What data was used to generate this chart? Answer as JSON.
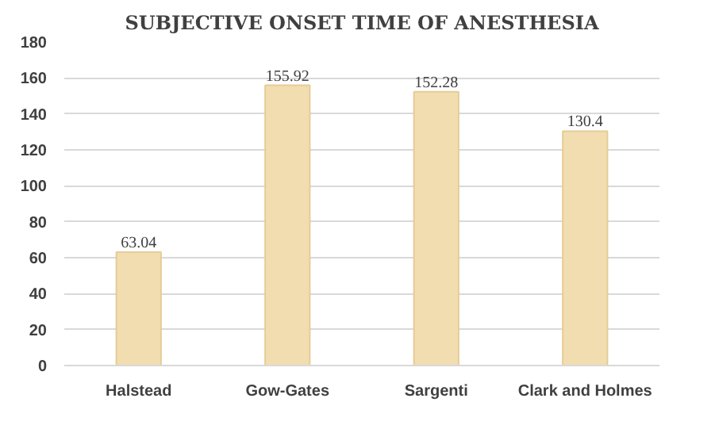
{
  "chart_data": {
    "type": "bar",
    "title": "SUBJECTIVE ONSET TIME OF ANESTHESIA",
    "categories": [
      "Halstead",
      "Gow-Gates",
      "Sargenti",
      "Clark and Holmes"
    ],
    "values": [
      63.04,
      155.92,
      152.28,
      130.4
    ],
    "color": "#f1ddb0",
    "ylim": [
      0,
      180
    ],
    "yticks": [
      0,
      20,
      40,
      60,
      80,
      100,
      120,
      140,
      160,
      180
    ],
    "grid": "y",
    "data_labels": true
  }
}
